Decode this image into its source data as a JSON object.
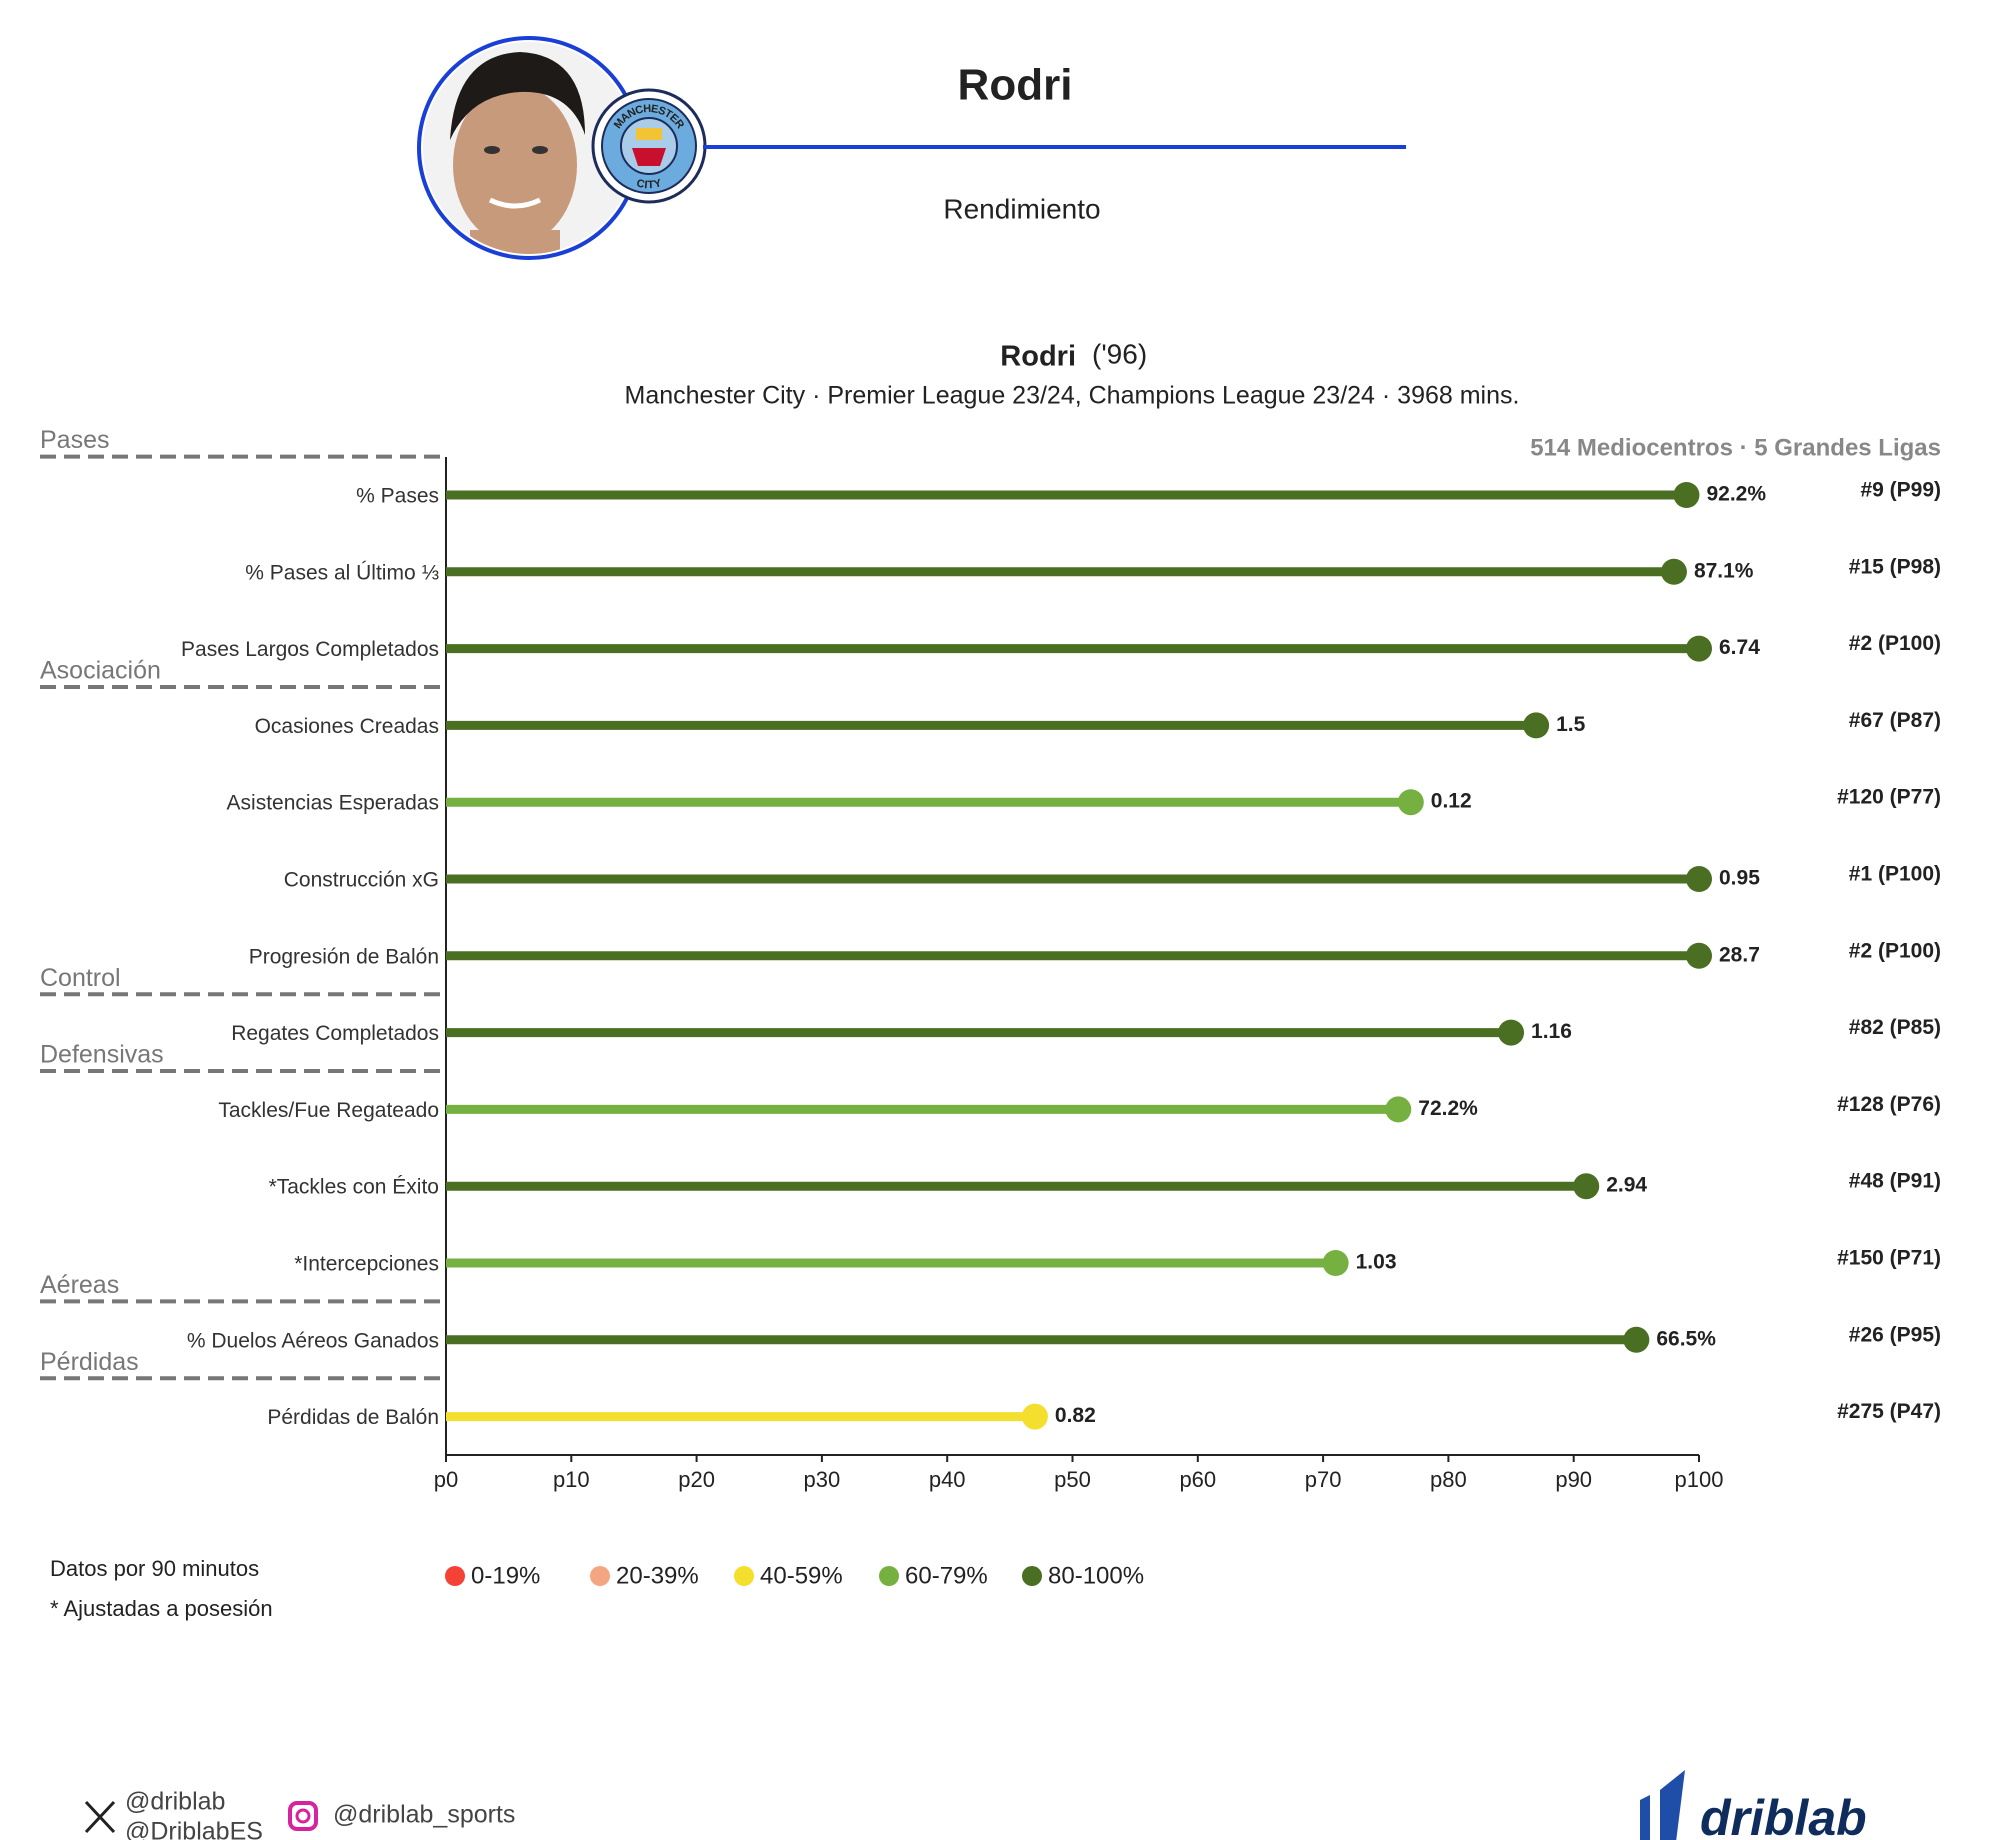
{
  "header": {
    "name": "Rodri",
    "section": "Rendimiento",
    "badge_top": "MANCHESTER",
    "badge_bottom": "CITY"
  },
  "chart_data": {
    "type": "lollipop",
    "title": "Rodri",
    "title_note": "('96)",
    "subtitle": "Manchester City · Premier League 23/24, Champions League 23/24 · 3968 mins.",
    "sample_label": "514 Mediocentros · 5 Grandes Ligas",
    "xlim": [
      0,
      100
    ],
    "xticks": [
      {
        "value": 0,
        "label": "p0"
      },
      {
        "value": 10,
        "label": "p10"
      },
      {
        "value": 20,
        "label": "p20"
      },
      {
        "value": 30,
        "label": "p30"
      },
      {
        "value": 40,
        "label": "p40"
      },
      {
        "value": 50,
        "label": "p50"
      },
      {
        "value": 60,
        "label": "p60"
      },
      {
        "value": 70,
        "label": "p70"
      },
      {
        "value": 80,
        "label": "p80"
      },
      {
        "value": 90,
        "label": "p90"
      },
      {
        "value": 100,
        "label": "p100"
      }
    ],
    "groups": [
      {
        "name": "Pases",
        "categories": [
          "% Pases",
          "% Pases al Último ⅓",
          "Pases Largos Completados"
        ],
        "values": [
          99,
          98,
          100
        ],
        "value_labels": [
          "92.2%",
          "87.1%",
          "6.74"
        ],
        "ranks": [
          "#9 (P99)",
          "#15 (P98)",
          "#2 (P100)"
        ],
        "colors": [
          "#4a6e22",
          "#4a6e22",
          "#4a6e22"
        ]
      },
      {
        "name": "Asociación",
        "categories": [
          "Ocasiones Creadas",
          "Asistencias Esperadas",
          "Construcción xG",
          "Progresión de Balón"
        ],
        "values": [
          87,
          77,
          100,
          100
        ],
        "value_labels": [
          "1.5",
          "0.12",
          "0.95",
          "28.7"
        ],
        "ranks": [
          "#67 (P87)",
          "#120 (P77)",
          "#1 (P100)",
          "#2 (P100)"
        ],
        "colors": [
          "#4a6e22",
          "#76b041",
          "#4a6e22",
          "#4a6e22"
        ]
      },
      {
        "name": "Control",
        "categories": [
          "Regates Completados"
        ],
        "values": [
          85
        ],
        "value_labels": [
          "1.16"
        ],
        "ranks": [
          "#82 (P85)"
        ],
        "colors": [
          "#4a6e22"
        ]
      },
      {
        "name": "Defensivas",
        "categories": [
          "Tackles/Fue Regateado",
          "*Tackles con Éxito",
          "*Intercepciones"
        ],
        "values": [
          76,
          91,
          71
        ],
        "value_labels": [
          "72.2%",
          "2.94",
          "1.03"
        ],
        "ranks": [
          "#128 (P76)",
          "#48 (P91)",
          "#150 (P71)"
        ],
        "colors": [
          "#76b041",
          "#4a6e22",
          "#76b041"
        ]
      },
      {
        "name": "Aéreas",
        "categories": [
          "% Duelos Aéreos Ganados"
        ],
        "values": [
          95
        ],
        "value_labels": [
          "66.5%"
        ],
        "ranks": [
          "#26 (P95)"
        ],
        "colors": [
          "#4a6e22"
        ]
      },
      {
        "name": "Pérdidas",
        "categories": [
          "Pérdidas de Balón"
        ],
        "values": [
          47
        ],
        "value_labels": [
          "0.82"
        ],
        "ranks": [
          "#275 (P47)"
        ],
        "colors": [
          "#f5df2e"
        ]
      }
    ],
    "legend": [
      {
        "label": "0-19%",
        "color": "#f44336"
      },
      {
        "label": "20-39%",
        "color": "#f4a582"
      },
      {
        "label": "40-59%",
        "color": "#f5df2e"
      },
      {
        "label": "60-79%",
        "color": "#76b041"
      },
      {
        "label": "80-100%",
        "color": "#4a6e22"
      }
    ],
    "notes": [
      "Datos por 90 minutos",
      "* Ajustadas a posesión"
    ]
  },
  "footer": {
    "x_handles": [
      "@driblab",
      "@DriblabES"
    ],
    "instagram": "@driblab_sports",
    "brand": "driblab"
  }
}
